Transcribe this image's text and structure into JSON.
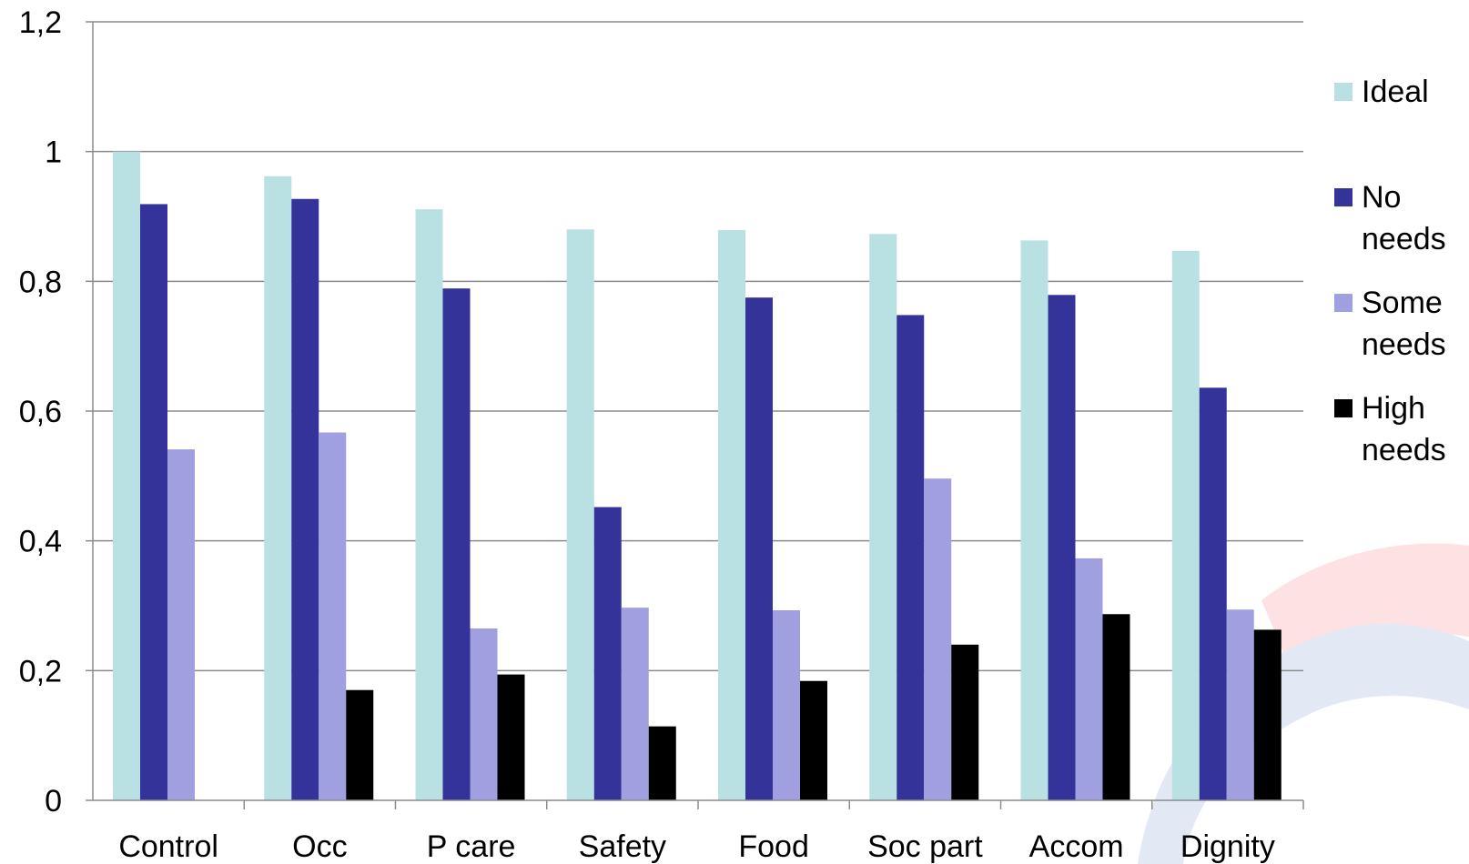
{
  "chart_data": {
    "type": "bar",
    "categories": [
      "Control",
      "Occ",
      "P care",
      "Safety",
      "Food",
      "Soc part",
      "Accom",
      "Dignity"
    ],
    "series": [
      {
        "name": "Ideal",
        "color": "#b9e0e2",
        "values": [
          1.0,
          0.962,
          0.911,
          0.88,
          0.879,
          0.873,
          0.863,
          0.847
        ]
      },
      {
        "name": "No needs",
        "color": "#333399",
        "values": [
          0.919,
          0.927,
          0.789,
          0.452,
          0.775,
          0.748,
          0.779,
          0.636
        ]
      },
      {
        "name": "Some needs",
        "color": "#a0a0e0",
        "values": [
          0.541,
          0.567,
          0.265,
          0.297,
          0.293,
          0.496,
          0.373,
          0.294
        ]
      },
      {
        "name": "High needs",
        "color": "#000000",
        "values": [
          null,
          0.17,
          0.194,
          0.114,
          0.184,
          0.24,
          0.287,
          0.263
        ]
      }
    ],
    "ylim": [
      0,
      1.2
    ],
    "yticks": [
      0,
      0.2,
      0.4,
      0.6,
      0.8,
      1,
      1.2
    ],
    "ytick_labels": [
      "0",
      "0,2",
      "0,4",
      "0,6",
      "0,8",
      "1",
      "1,2"
    ],
    "grid": true,
    "legend_position": "right",
    "title": "",
    "xlabel": "",
    "ylabel": ""
  }
}
